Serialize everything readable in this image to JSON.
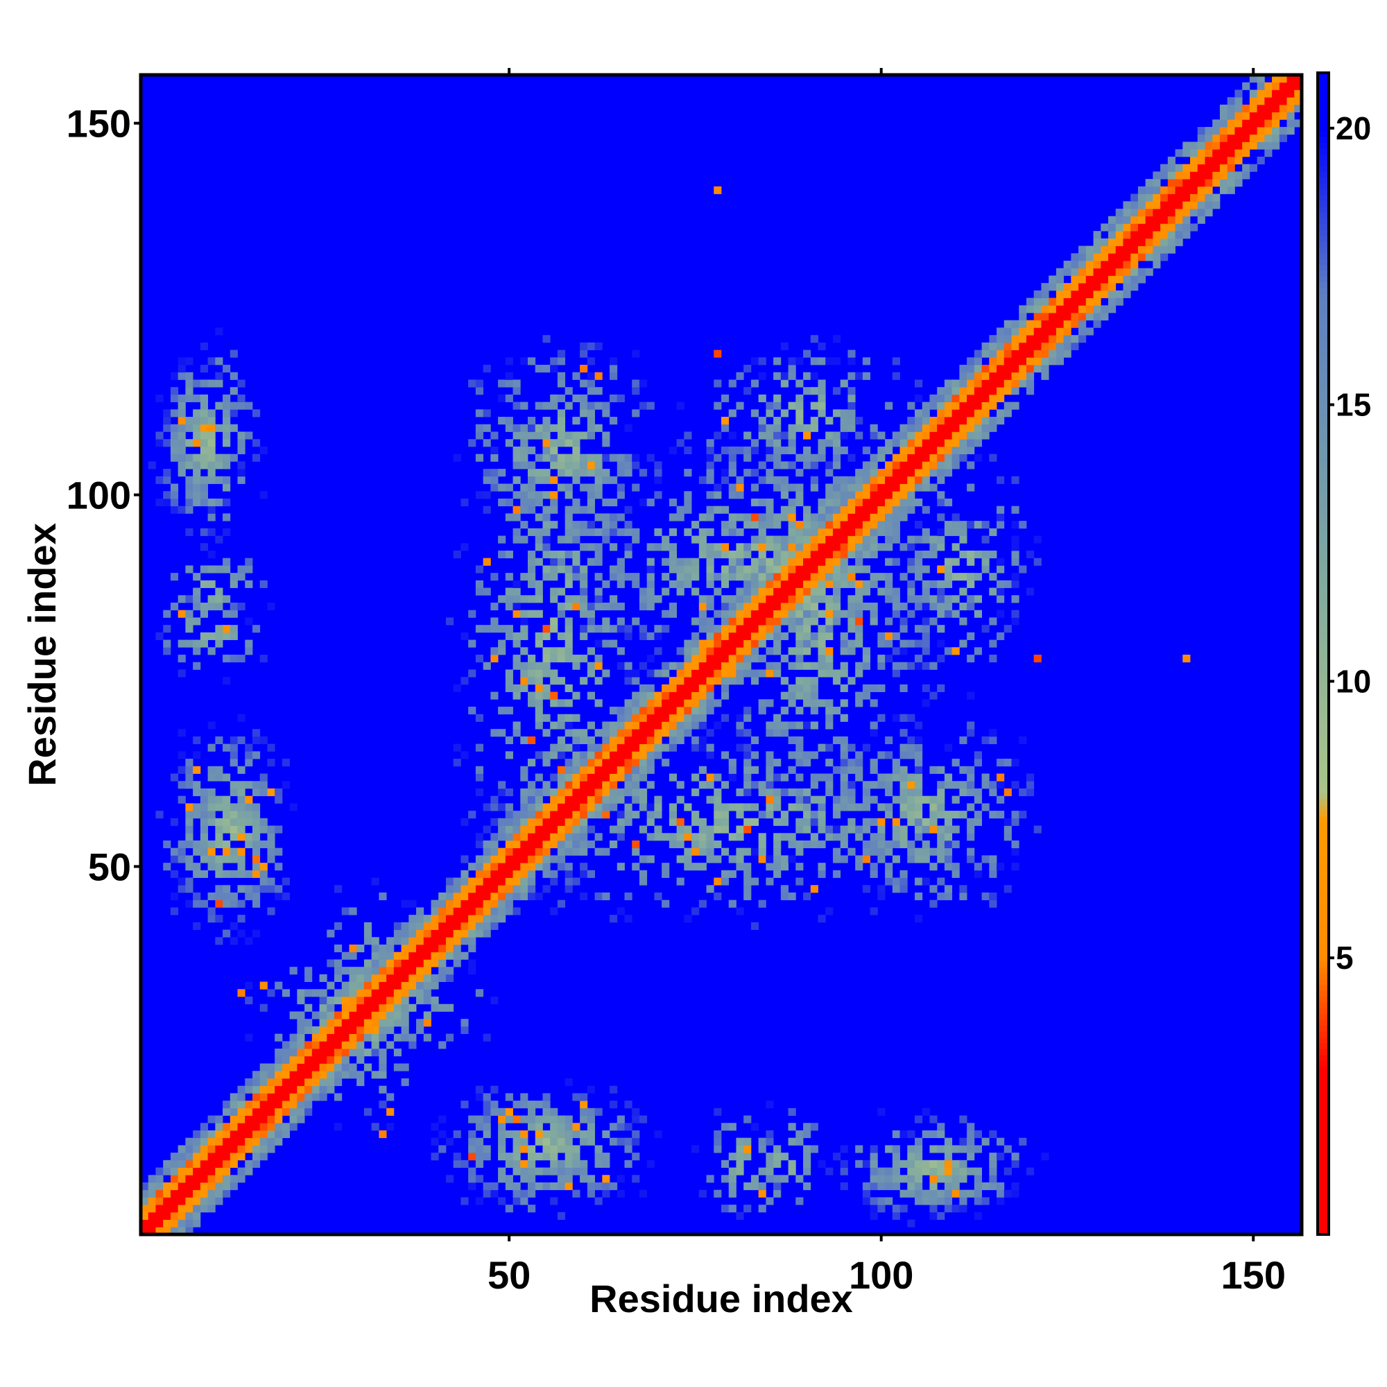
{
  "chart_data": {
    "type": "heatmap",
    "title": "",
    "xlabel": "Residue index",
    "ylabel": "Residue index",
    "xlim": [
      1,
      156
    ],
    "ylim": [
      1,
      156
    ],
    "x_ticks": [
      50,
      100,
      150
    ],
    "y_ticks": [
      50,
      100,
      150
    ],
    "colorbar": {
      "range": [
        0,
        21
      ],
      "ticks": [
        5,
        10,
        15,
        20
      ],
      "colors": [
        {
          "value": 0,
          "color": "#ff0000"
        },
        {
          "value": 3,
          "color": "#ff0000"
        },
        {
          "value": 5,
          "color": "#ff8c00"
        },
        {
          "value": 7.5,
          "color": "#ff9a00"
        },
        {
          "value": 8,
          "color": "#aac48a"
        },
        {
          "value": 12,
          "color": "#7fa8a0"
        },
        {
          "value": 17,
          "color": "#5f7fc0"
        },
        {
          "value": 20,
          "color": "#0000ff"
        }
      ]
    },
    "background_value": 21,
    "background_color": "#0000ff",
    "diagonal": {
      "value": 0,
      "core_halfwidth": 1,
      "orange_halfwidth": 3,
      "halo_halfwidth": 6
    },
    "contact_clusters": [
      {
        "x": [
          2,
          15
        ],
        "y": [
          95,
          120
        ],
        "density": 0.75
      },
      {
        "x": [
          3,
          18
        ],
        "y": [
          80,
          95
        ],
        "density": 0.5
      },
      {
        "x": [
          4,
          22
        ],
        "y": [
          40,
          70
        ],
        "density": 0.65
      },
      {
        "x": [
          22,
          40
        ],
        "y": [
          12,
          50
        ],
        "density": 0.55
      },
      {
        "x": [
          40,
          70
        ],
        "y": [
          2,
          22
        ],
        "density": 0.6
      },
      {
        "x": [
          75,
          88
        ],
        "y": [
          2,
          18
        ],
        "density": 0.45
      },
      {
        "x": [
          92,
          122
        ],
        "y": [
          2,
          18
        ],
        "density": 0.6
      },
      {
        "x": [
          42,
          70
        ],
        "y": [
          40,
          120
        ],
        "density": 0.55
      },
      {
        "x": [
          74,
          108
        ],
        "y": [
          50,
          120
        ],
        "density": 0.55
      },
      {
        "x": [
          90,
          122
        ],
        "y": [
          42,
          72
        ],
        "density": 0.55
      },
      {
        "x": [
          100,
          122
        ],
        "y": [
          72,
          108
        ],
        "density": 0.45
      }
    ],
    "isolated_contacts": [
      {
        "x": 78,
        "y": 141,
        "value": 5
      },
      {
        "x": 78,
        "y": 119,
        "value": 4
      },
      {
        "x": 141,
        "y": 78,
        "value": 5
      },
      {
        "x": 121,
        "y": 78,
        "value": 4
      }
    ],
    "grid": false,
    "legend": "none"
  }
}
